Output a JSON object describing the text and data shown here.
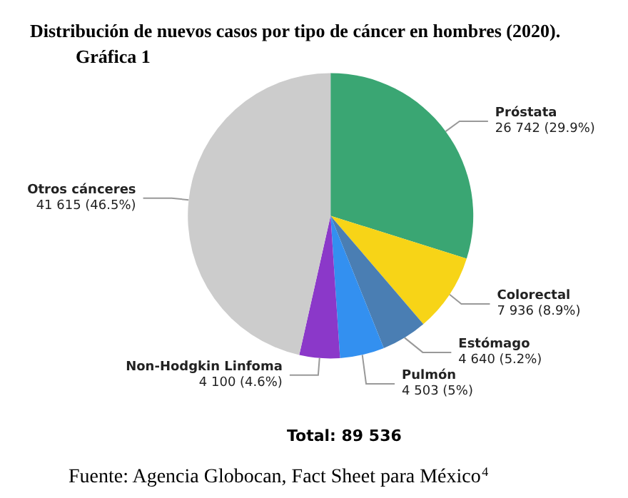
{
  "chart_data": {
    "type": "pie",
    "title": "Distribución de nuevos casos por tipo de cáncer en hombres (2020).",
    "subtitle": "Gráfica 1",
    "categories": [
      "Próstata",
      "Colorectal",
      "Estómago",
      "Pulmón",
      "Non-Hodgkin Linfoma",
      "Otros cánceres"
    ],
    "values": [
      26742,
      7936,
      4640,
      4503,
      4100,
      41615
    ],
    "value_labels": [
      "26 742 (29.9%)",
      "7 936 (8.9%)",
      "4 640 (5.2%)",
      "4 503 (5%)",
      "4 100 (4.6%)",
      "41 615 (46.5%)"
    ],
    "colors": [
      "#3aa673",
      "#f7d417",
      "#4a7eb3",
      "#3390f0",
      "#8b38c9",
      "#cccccc"
    ],
    "annotations": [
      "Total: 89 536",
      "Fuente: Agencia Globocan, Fact Sheet para México$^{4}$"
    ],
    "legend": false
  }
}
